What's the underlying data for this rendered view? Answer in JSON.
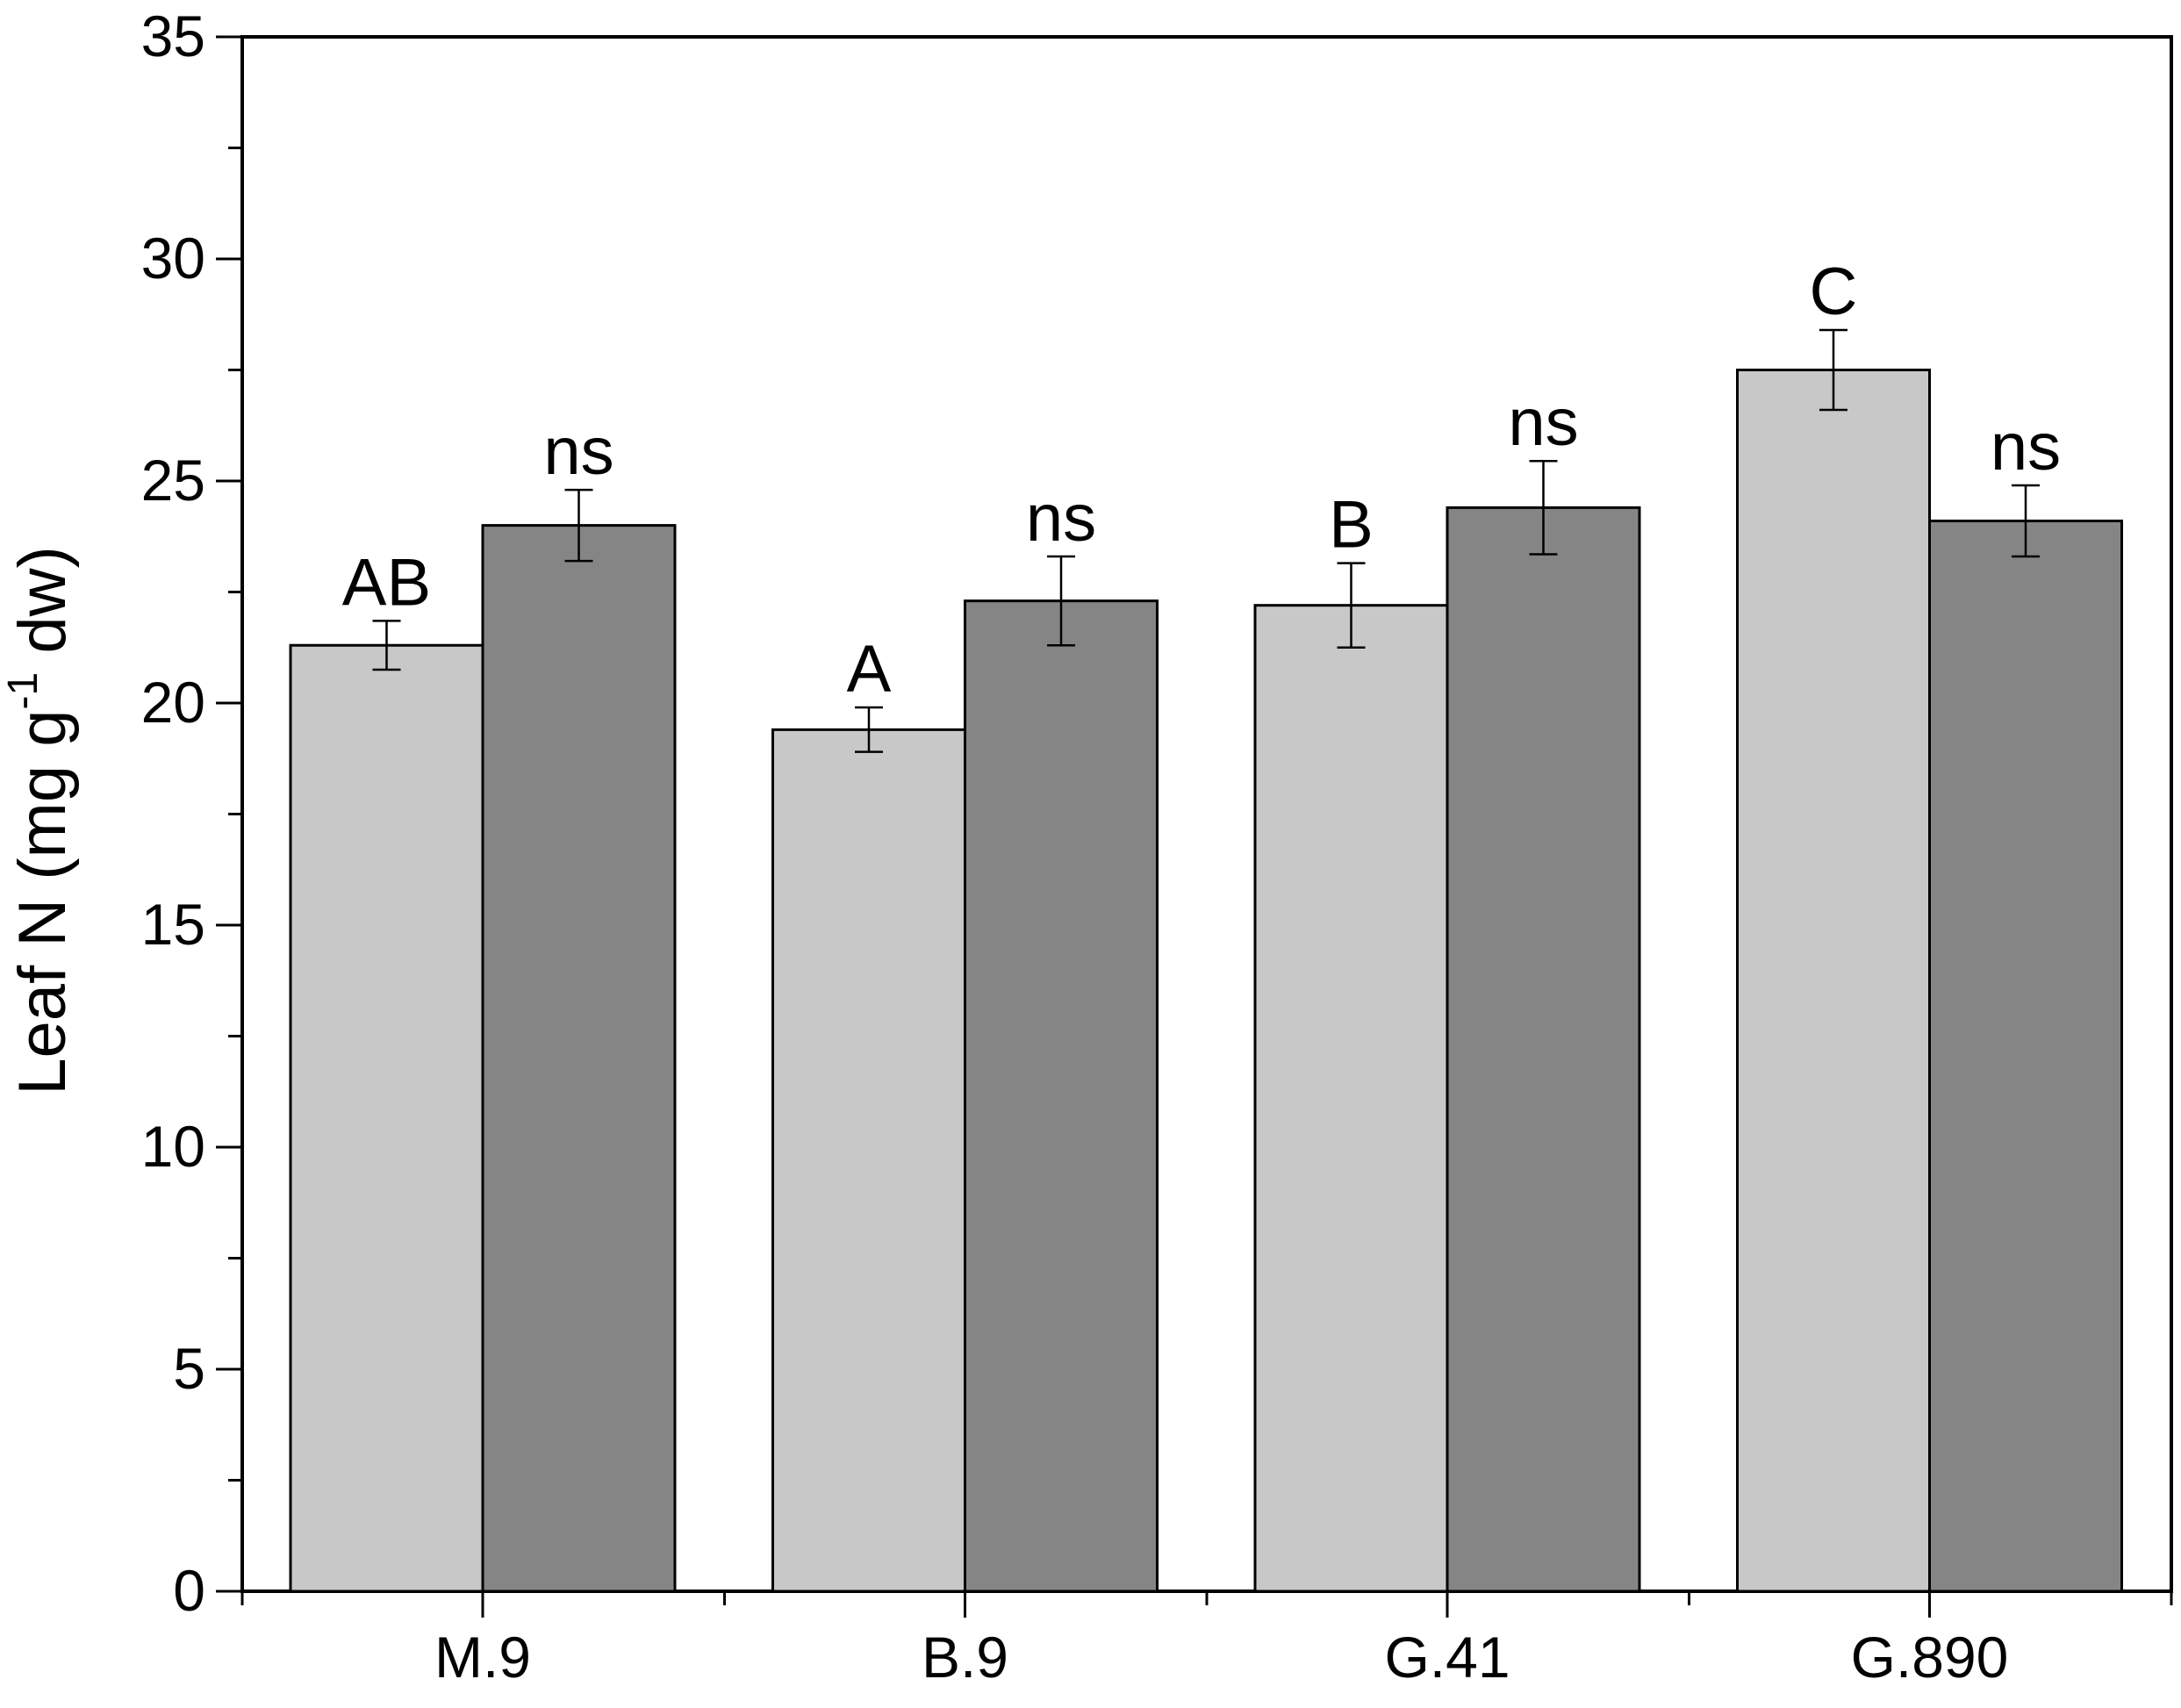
{
  "chart_data": {
    "type": "bar",
    "title": "",
    "xlabel": "",
    "ylabel": "Leaf N (mg g",
    "ylabel_superscript": "-1",
    "ylabel_suffix": " dw)",
    "ylim": [
      0,
      35
    ],
    "yticks": [
      0,
      5,
      10,
      15,
      20,
      25,
      30,
      35
    ],
    "categories": [
      "M.9",
      "B.9",
      "G.41",
      "G.890"
    ],
    "grid": false,
    "legend": "none",
    "series": [
      {
        "color": "#c8c8c8",
        "values": [
          21.3,
          19.4,
          22.2,
          27.5
        ],
        "errors": [
          0.55,
          0.5,
          0.95,
          0.9
        ],
        "labels": [
          "AB",
          "A",
          "B",
          "C"
        ]
      },
      {
        "color": "#858585",
        "values": [
          24.0,
          22.3,
          24.4,
          24.1
        ],
        "errors": [
          0.8,
          1.0,
          1.05,
          0.8
        ],
        "labels": [
          "ns",
          "ns",
          "ns",
          "ns"
        ]
      }
    ]
  }
}
